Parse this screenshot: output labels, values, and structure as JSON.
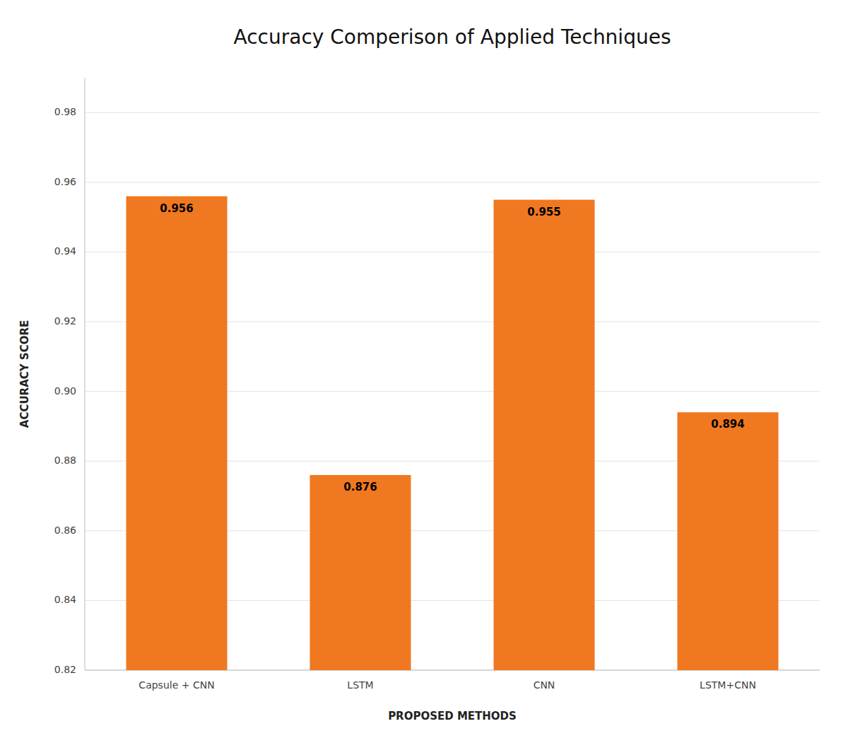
{
  "chart_data": {
    "type": "bar",
    "title": "Accuracy Comperison of Applied Techniques",
    "categories": [
      "Capsule + CNN",
      "LSTM",
      "CNN",
      "LSTM+CNN"
    ],
    "values": [
      0.956,
      0.876,
      0.955,
      0.894
    ],
    "color": "#F07820",
    "xlabel": "PROPOSED METHODS",
    "ylabel": "ACCURACY SCORE",
    "ylim": [
      0.82,
      0.99
    ],
    "yticks": [
      0.82,
      0.84,
      0.86,
      0.88,
      {
        "value": 0.9,
        "label": "0.90"
      },
      0.92,
      0.94,
      0.96,
      0.98
    ],
    "grid": true,
    "data_labels": true
  }
}
